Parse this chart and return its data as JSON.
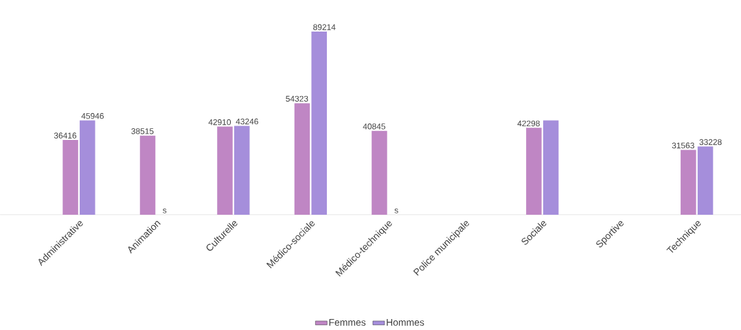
{
  "chart_data": {
    "type": "bar",
    "categories": [
      "Administrative",
      "Animation",
      "Culturelle",
      "Médico-sociale",
      "Médico-technique",
      "Police municipale",
      "Sociale",
      "Sportive",
      "Technique"
    ],
    "series": [
      {
        "name": "Femmes",
        "color": "#bf86c4",
        "values": [
          36416,
          38515,
          42910,
          54323,
          40845,
          null,
          42298,
          null,
          31563
        ],
        "value_labels": [
          "36416",
          "38515",
          "42910",
          "54323",
          "40845",
          null,
          "42298",
          null,
          "31563"
        ]
      },
      {
        "name": "Hommes",
        "color": "#a58edb",
        "values": [
          45946,
          null,
          43246,
          89214,
          null,
          null,
          45900,
          null,
          33228
        ],
        "value_labels": [
          "45946",
          "s",
          "43246",
          "89214",
          "s",
          null,
          null,
          null,
          "33228"
        ]
      }
    ],
    "legend": "bottom",
    "grid": false
  }
}
